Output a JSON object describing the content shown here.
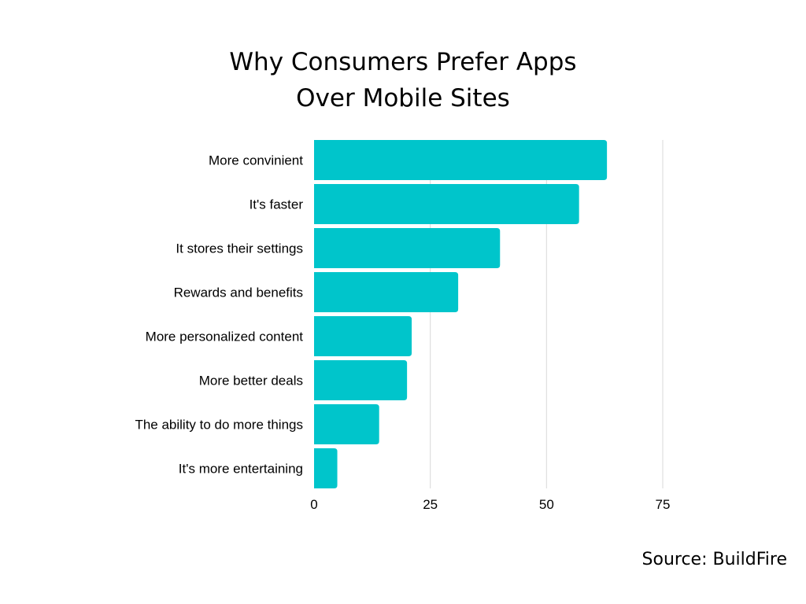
{
  "chart_data": {
    "type": "bar",
    "orientation": "horizontal",
    "title_lines": [
      "Why Consumers Prefer Apps",
      "Over Mobile Sites"
    ],
    "categories": [
      "More convinient",
      "It's faster",
      "It stores their settings",
      "Rewards and benefits",
      "More personalized content",
      "More better deals",
      "The ability to do more things",
      "It's more entertaining"
    ],
    "values": [
      63,
      57,
      40,
      31,
      21,
      20,
      14,
      5
    ],
    "xlim": [
      0,
      75
    ],
    "xticks": [
      0,
      25,
      50,
      75
    ],
    "xlabel": "",
    "ylabel": "",
    "grid": true,
    "legend": "none",
    "bar_color": "#00C5CB",
    "grid_color": "#D9D9D9"
  },
  "source": "Source: BuildFire"
}
